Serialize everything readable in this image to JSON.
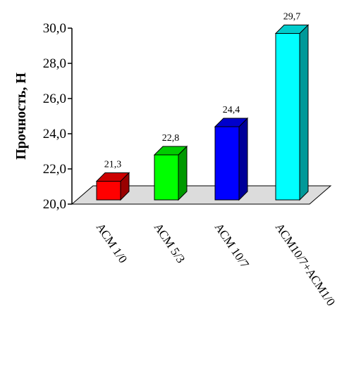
{
  "chart_data": {
    "type": "bar",
    "title": "",
    "xlabel": "",
    "ylabel": "Прочность, Н",
    "categories": [
      "АСМ 1/0",
      "АСМ 5/3",
      "АСМ 10/7",
      "АСМ10/7+АСМ1/0"
    ],
    "values": [
      21.3,
      22.8,
      24.4,
      29.7
    ],
    "data_labels": [
      "21,3",
      "22,8",
      "24,4",
      "29,7"
    ],
    "yticks": [
      "20,0",
      "22,0",
      "24,0",
      "26,0",
      "28,0",
      "30,0"
    ],
    "ylim": [
      20,
      30
    ],
    "grid": false,
    "style": "3d",
    "colors": [
      "#ff0000",
      "#00ff00",
      "#0000ff",
      "#00ffff"
    ]
  }
}
